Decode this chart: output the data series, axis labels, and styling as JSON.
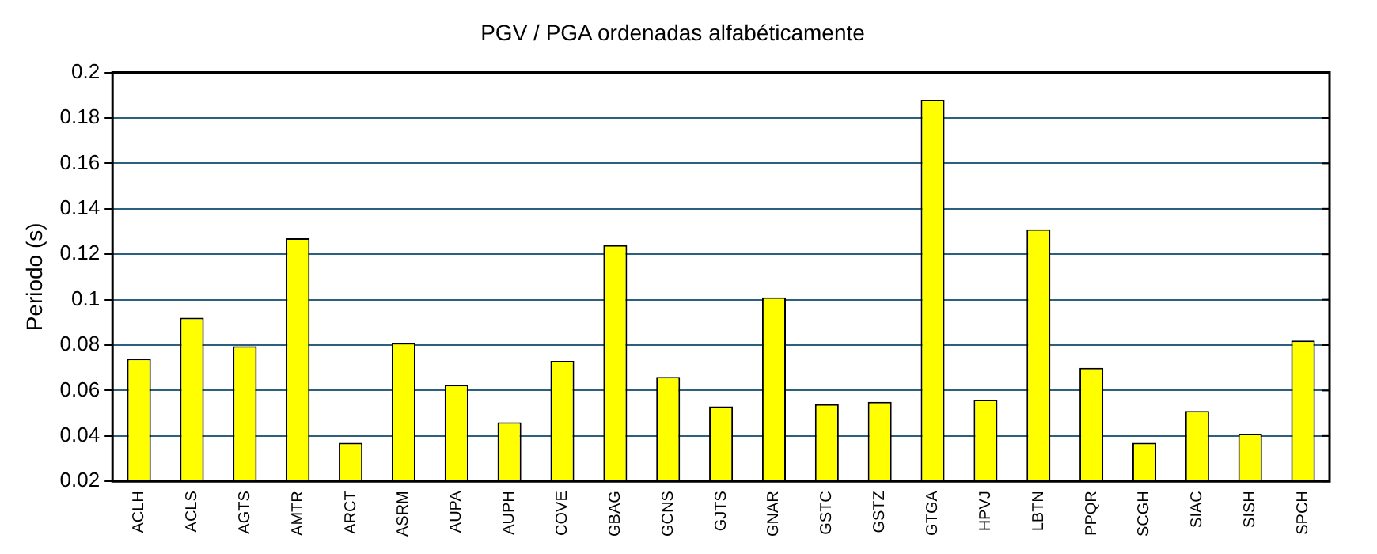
{
  "chart_data": {
    "type": "bar",
    "title": "PGV / PGA ordenadas alfabéticamente",
    "ylabel": "Periodo (s)",
    "categories": [
      "ACLH",
      "ACLS",
      "AGTS",
      "AMTR",
      "ARCT",
      "ASRM",
      "AUPA",
      "AUPH",
      "COVE",
      "GBAG",
      "GCNS",
      "GJTS",
      "GNAR",
      "GSTC",
      "GSTZ",
      "GTGA",
      "HPVJ",
      "LBTN",
      "PPQR",
      "SCGH",
      "SIAC",
      "SISH",
      "SPCH"
    ],
    "values": [
      0.074,
      0.092,
      0.0795,
      0.127,
      0.037,
      0.081,
      0.0625,
      0.046,
      0.073,
      0.124,
      0.066,
      0.053,
      0.101,
      0.054,
      0.055,
      0.188,
      0.056,
      0.131,
      0.07,
      0.037,
      0.051,
      0.041,
      0.082
    ],
    "color": "#ffff00",
    "ylim": [
      0.02,
      0.2
    ],
    "yticks": [
      0.02,
      0.04,
      0.06,
      0.08,
      0.1,
      0.12,
      0.14,
      0.16,
      0.18,
      0.2
    ],
    "grid": "y",
    "legend": false
  }
}
